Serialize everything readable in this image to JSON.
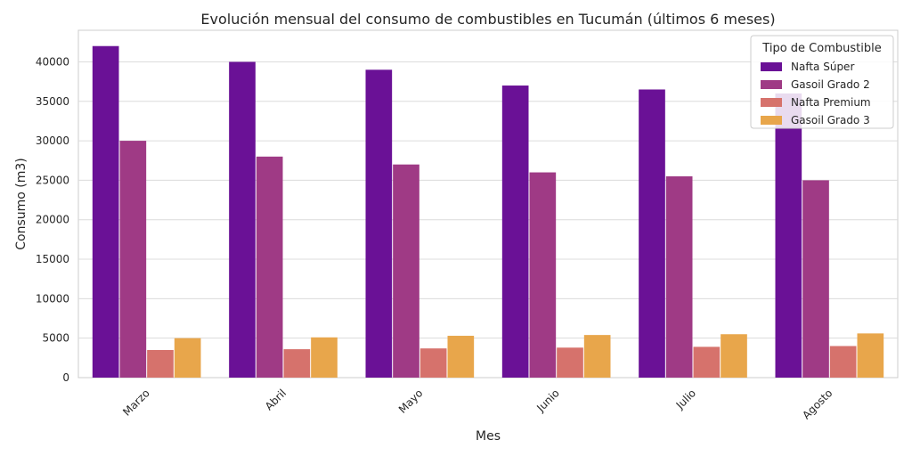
{
  "chart_data": {
    "type": "bar",
    "title": "Evolución mensual del consumo de combustibles en Tucumán (últimos 6 meses)",
    "xlabel": "Mes",
    "ylabel": "Consumo (m3)",
    "categories": [
      "Marzo",
      "Abril",
      "Mayo",
      "Junio",
      "Julio",
      "Agosto"
    ],
    "ylim": [
      0,
      44000
    ],
    "yticks": [
      0,
      5000,
      10000,
      15000,
      20000,
      25000,
      30000,
      35000,
      40000
    ],
    "grid": true,
    "legend_title": "Tipo de Combustible",
    "legend_position": "top-right",
    "series": [
      {
        "name": "Nafta Súper",
        "color": "#6a1196",
        "values": [
          42000,
          40000,
          39000,
          37000,
          36500,
          36000
        ]
      },
      {
        "name": "Gasoil Grado 2",
        "color": "#9f3a85",
        "values": [
          30000,
          28000,
          27000,
          26000,
          25500,
          25000
        ]
      },
      {
        "name": "Nafta Premium",
        "color": "#d6726c",
        "values": [
          3500,
          3600,
          3700,
          3800,
          3900,
          4000
        ]
      },
      {
        "name": "Gasoil Grado 3",
        "color": "#e8a64b",
        "values": [
          5000,
          5100,
          5300,
          5400,
          5500,
          5600
        ]
      }
    ]
  }
}
